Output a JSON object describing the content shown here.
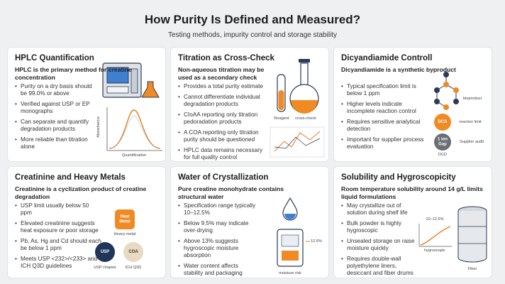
{
  "header": {
    "title": "How Purity Is Defined and Measured?",
    "subtitle": "Testing methods, impurity control and storage stability"
  },
  "cards": [
    {
      "title": "HPLC Quantification",
      "lead": "HPLC is the primary method for creatine concentration",
      "bullets": [
        "Purity on a dry basis should be 99.0% or above",
        "Verified against USP or EP monographs",
        "Can separate and quantify degradation products",
        "More reliable than titration alone"
      ],
      "labels": [
        "Absorbance",
        "Quantification"
      ]
    },
    {
      "title": "Titration as Cross-Check",
      "lead": "Non-aqueous titration may be used as a secondary check",
      "bullets": [
        "Provides a total purity estimate",
        "Cannot differentiate individual degradation products",
        "CIoAA reporting only titration pedoradation products",
        "A COA reporting only titration purity should be questioned",
        "HPLC data remains necessary for full quality control"
      ],
      "labels": [
        "Reagent",
        "cross-check"
      ]
    },
    {
      "title": "Dicyandiamide Controll",
      "lead": "Dicyandiamide is a synthetic byproduct",
      "bullets": [
        "Typical specification limit is below 1 ppm",
        "Higher levels indicate incomplete reaction control",
        "Requires sensitive analytical detection",
        "Important for supplier process evaluation"
      ],
      "labels": [
        "bioproduct",
        "DCA",
        "reaction limit",
        "1 ion Gap",
        "Supplier audit",
        "DCD"
      ]
    },
    {
      "title": "Creatinine and Heavy Metals",
      "lead": "Creatinine is a cyclization product of creatine degradation",
      "bullets": [
        "USP limit usually below 50 ppm",
        "Elevated creatinine suggests heat exposure or poor storage",
        "Pb, As, Hg and Cd should each be below 1 ppm",
        "Meets USP <232>/<233> and ICH Q3D guidelines"
      ],
      "labels": [
        "Heat Metal",
        "Heavy metal",
        "USP",
        "USP chapter",
        "COA",
        "ICH Q3D"
      ]
    },
    {
      "title": "Water of Crystallization",
      "lead": "Pure creatine monohydrate contains structural water",
      "bullets": [
        "Specification range typically 10–12.5%",
        "Below 9.5% may indicate over-drying",
        "Above 13% suggests hygroscopic moisture absorption",
        "Water content affects stability and packaging performance"
      ],
      "labels": [
        "12.5%",
        "moisture risk"
      ]
    },
    {
      "title": "Solubility and Hygroscopicity",
      "lead": "Room temperature solubility around 14 g/L limits liquid formulations",
      "bullets": [
        "May crystallize out of solution during shelf life",
        "Bulk powder is highly hygroscopic",
        "Unsealed storage on raise moisture quickly",
        "Requires double-wall polyethylene liners, desiccant and fiber drums"
      ],
      "labels": [
        "10–12.5%",
        "hygroscopic",
        "Fiber"
      ]
    }
  ]
}
